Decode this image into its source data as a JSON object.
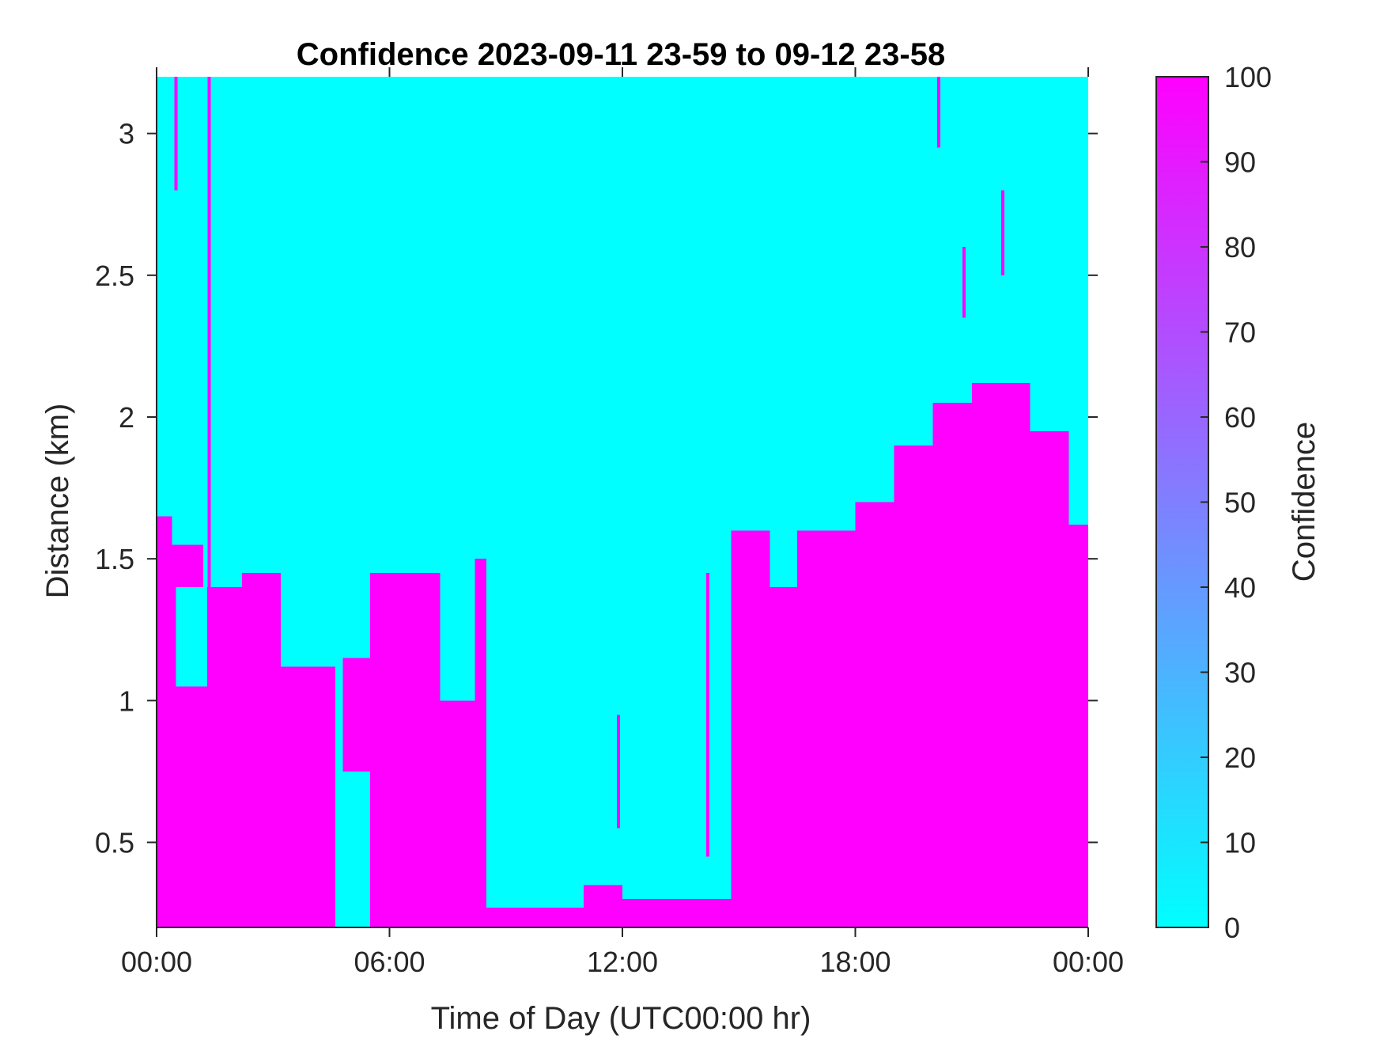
{
  "chart_data": {
    "type": "heatmap",
    "title": "Confidence 2023-09-11 23-59 to 09-12 23-58",
    "xlabel": "Time of Day (UTC00:00 hr)",
    "ylabel": "Distance (km)",
    "xlim": [
      0,
      24
    ],
    "ylim": [
      0.2,
      3.2
    ],
    "xticks": [
      {
        "value": 0,
        "label": "00:00"
      },
      {
        "value": 6,
        "label": "06:00"
      },
      {
        "value": 12,
        "label": "12:00"
      },
      {
        "value": 18,
        "label": "18:00"
      },
      {
        "value": 24,
        "label": "00:00"
      }
    ],
    "yticks": [
      {
        "value": 0.5,
        "label": "0.5"
      },
      {
        "value": 1,
        "label": "1"
      },
      {
        "value": 1.5,
        "label": "1.5"
      },
      {
        "value": 2,
        "label": "2"
      },
      {
        "value": 2.5,
        "label": "2.5"
      },
      {
        "value": 3,
        "label": "3"
      }
    ],
    "colorbar": {
      "label": "Confidence",
      "range": [
        0,
        100
      ],
      "ticks": [
        "0",
        "10",
        "20",
        "30",
        "40",
        "50",
        "60",
        "70",
        "80",
        "90",
        "100"
      ],
      "color_low": "#00ffff",
      "color_high": "#ff00ff"
    },
    "grid": false,
    "background_value": 0,
    "high_confidence_regions": [
      {
        "x": [
          0.0,
          0.4
        ],
        "y": [
          0.2,
          1.65
        ]
      },
      {
        "x": [
          0.4,
          1.2
        ],
        "y": [
          0.2,
          1.55
        ]
      },
      {
        "x": [
          1.2,
          2.2
        ],
        "y": [
          0.2,
          1.4
        ]
      },
      {
        "x": [
          2.2,
          3.2
        ],
        "y": [
          0.2,
          1.45
        ]
      },
      {
        "x": [
          3.2,
          4.6
        ],
        "y": [
          0.2,
          1.12
        ]
      },
      {
        "x": [
          4.8,
          5.5
        ],
        "y": [
          0.75,
          1.15
        ]
      },
      {
        "x": [
          5.5,
          7.3
        ],
        "y": [
          0.2,
          1.45
        ]
      },
      {
        "x": [
          7.3,
          8.2
        ],
        "y": [
          0.2,
          1.0
        ]
      },
      {
        "x": [
          8.2,
          8.5
        ],
        "y": [
          0.2,
          1.5
        ]
      },
      {
        "x": [
          8.5,
          11.0
        ],
        "y": [
          0.2,
          0.27
        ]
      },
      {
        "x": [
          11.0,
          12.0
        ],
        "y": [
          0.2,
          0.35
        ]
      },
      {
        "x": [
          12.0,
          14.8
        ],
        "y": [
          0.2,
          0.3
        ]
      },
      {
        "x": [
          14.8,
          15.8
        ],
        "y": [
          0.2,
          1.6
        ]
      },
      {
        "x": [
          15.8,
          16.5
        ],
        "y": [
          0.2,
          1.4
        ]
      },
      {
        "x": [
          16.5,
          18.0
        ],
        "y": [
          0.2,
          1.6
        ]
      },
      {
        "x": [
          18.0,
          19.0
        ],
        "y": [
          0.2,
          1.7
        ]
      },
      {
        "x": [
          19.0,
          20.0
        ],
        "y": [
          0.2,
          1.9
        ]
      },
      {
        "x": [
          20.0,
          21.0
        ],
        "y": [
          0.2,
          2.05
        ]
      },
      {
        "x": [
          21.0,
          22.5
        ],
        "y": [
          0.2,
          2.12
        ]
      },
      {
        "x": [
          22.5,
          23.5
        ],
        "y": [
          0.2,
          1.95
        ]
      },
      {
        "x": [
          23.5,
          24.0
        ],
        "y": [
          0.2,
          1.62
        ]
      }
    ],
    "low_confidence_regions": [
      {
        "x": [
          4.6,
          5.5
        ],
        "y": [
          0.2,
          0.75
        ]
      },
      {
        "x": [
          0.5,
          1.3
        ],
        "y": [
          1.05,
          1.4
        ]
      }
    ],
    "vertical_streaks": [
      {
        "x": 0.5,
        "y": [
          2.8,
          3.2
        ]
      },
      {
        "x": 1.35,
        "y": [
          1.2,
          3.2
        ]
      },
      {
        "x": 20.15,
        "y": [
          2.95,
          3.2
        ]
      },
      {
        "x": 20.8,
        "y": [
          2.35,
          2.6
        ]
      },
      {
        "x": 21.8,
        "y": [
          2.5,
          2.8
        ]
      },
      {
        "x": 14.2,
        "y": [
          0.45,
          1.45
        ]
      },
      {
        "x": 11.9,
        "y": [
          0.55,
          0.95
        ]
      }
    ]
  }
}
